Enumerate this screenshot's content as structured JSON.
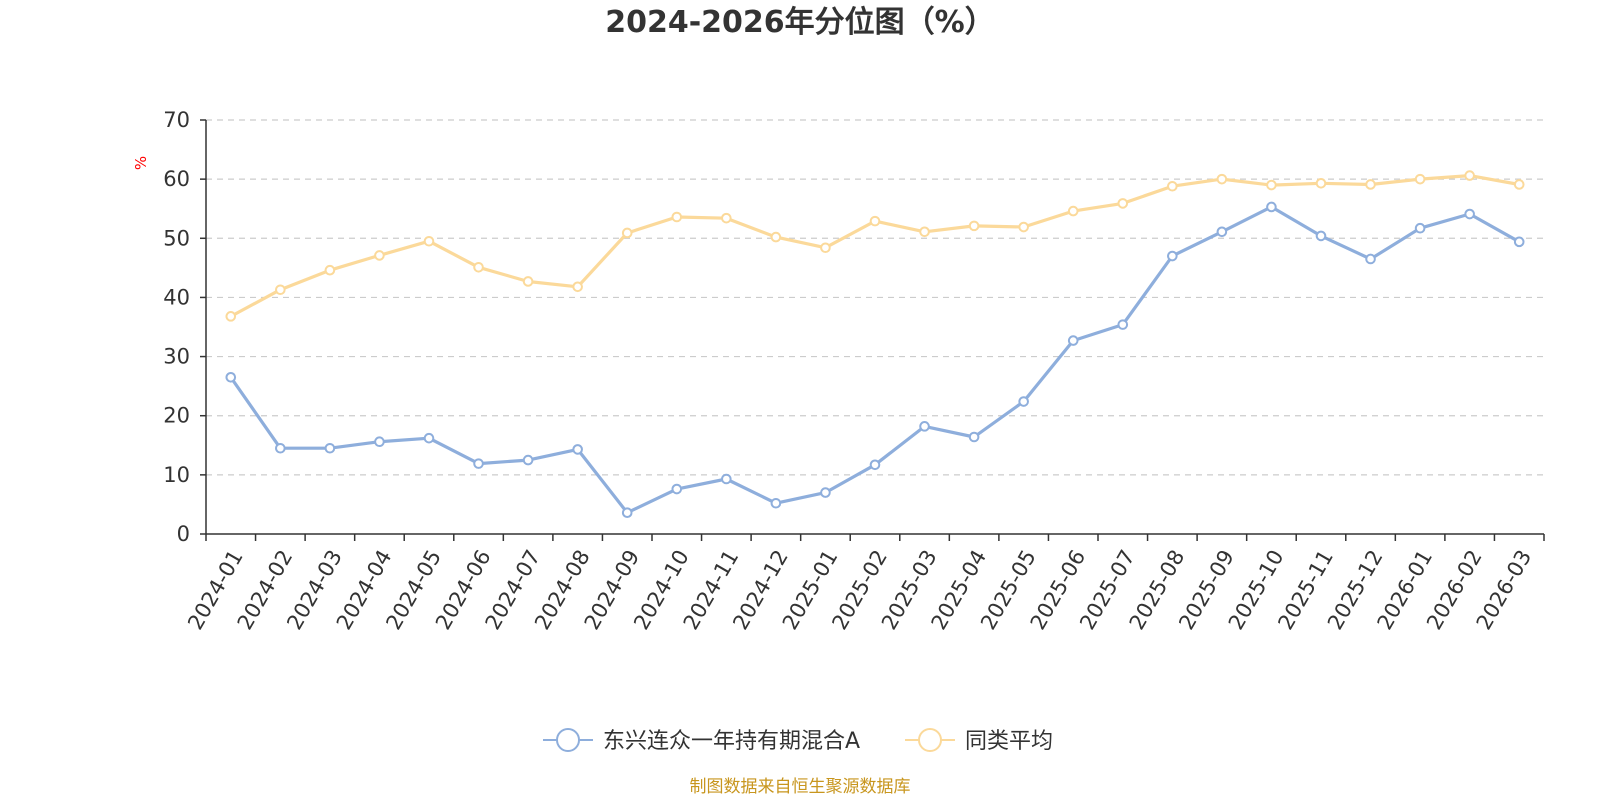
{
  "chart_data": {
    "type": "line",
    "title": "2024-2026年分位图（%）",
    "ylabel": "%",
    "ylim": [
      0,
      70
    ],
    "yticks": [
      0,
      10,
      20,
      30,
      40,
      50,
      60,
      70
    ],
    "grid": true,
    "legend_position": "bottom",
    "categories": [
      "2024-01",
      "2024-02",
      "2024-03",
      "2024-04",
      "2024-05",
      "2024-06",
      "2024-07",
      "2024-08",
      "2024-09",
      "2024-10",
      "2024-11",
      "2024-12",
      "2025-01",
      "2025-02",
      "2025-03",
      "2025-04",
      "2025-05",
      "2025-06",
      "2025-07",
      "2025-08",
      "2025-09",
      "2025-10",
      "2025-11",
      "2025-12",
      "2026-01",
      "2026-02",
      "2026-03"
    ],
    "series": [
      {
        "name": "东兴连众一年持有期混合A",
        "color": "#8eaedc",
        "values": [
          26.5,
          14.5,
          14.5,
          15.6,
          16.2,
          11.9,
          12.5,
          14.3,
          3.6,
          7.6,
          9.3,
          5.2,
          7.0,
          11.7,
          18.2,
          16.4,
          22.4,
          32.7,
          35.4,
          47.0,
          51.1,
          55.3,
          50.4,
          46.5,
          51.7,
          54.1,
          49.4
        ]
      },
      {
        "name": "同类平均",
        "color": "#fbd99a",
        "values": [
          36.8,
          41.3,
          44.6,
          47.1,
          49.5,
          45.1,
          42.7,
          41.8,
          50.9,
          53.6,
          53.4,
          50.2,
          48.4,
          52.9,
          51.1,
          52.1,
          51.9,
          54.6,
          55.9,
          58.8,
          60.0,
          59.0,
          59.3,
          59.1,
          60.0,
          60.6,
          59.1
        ]
      }
    ]
  },
  "source": "制图数据来自恒生聚源数据库"
}
